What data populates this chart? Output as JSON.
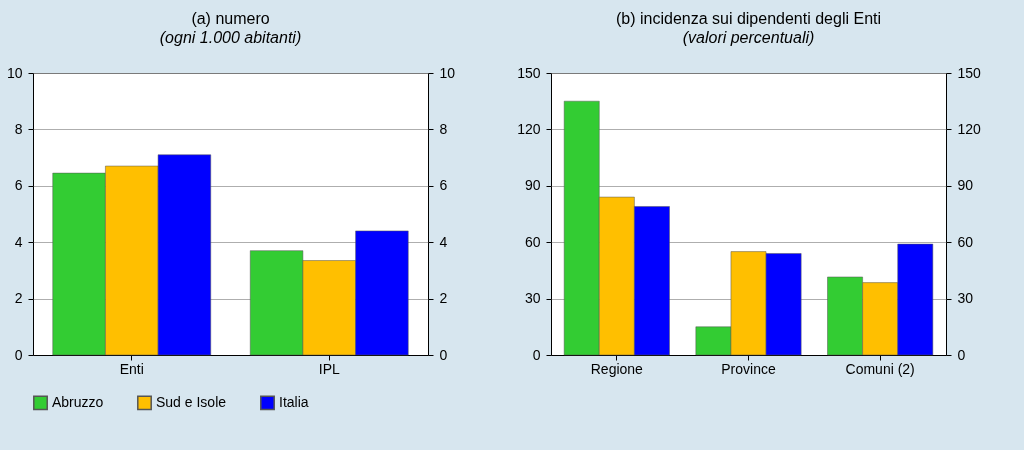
{
  "chart_data": [
    {
      "type": "bar",
      "title": "(a) numero",
      "subtitle": "(ogni 1.000 abitanti)",
      "categories": [
        "Enti",
        "IPL"
      ],
      "series": [
        {
          "name": "Abruzzo",
          "color": "#33cc33",
          "values": [
            6.45,
            3.7
          ]
        },
        {
          "name": "Sud e Isole",
          "color": "#ffbf00",
          "values": [
            6.7,
            3.35
          ]
        },
        {
          "name": "Italia",
          "color": "#0000ff",
          "values": [
            7.1,
            4.4
          ]
        }
      ],
      "ylim": [
        0,
        10
      ],
      "yticks": [
        0,
        2,
        4,
        6,
        8,
        10
      ],
      "y2lim": [
        0,
        10
      ],
      "y2ticks": [
        0,
        2,
        4,
        6,
        8,
        10
      ],
      "grid": "y",
      "legend": "bottom"
    },
    {
      "type": "bar",
      "title": "(b) incidenza sui dipendenti degli Enti",
      "subtitle": "(valori percentuali)",
      "categories": [
        "Regione",
        "Province",
        "Comuni (2)"
      ],
      "series": [
        {
          "name": "Abruzzo",
          "color": "#33cc33",
          "values": [
            135,
            15,
            41.5
          ]
        },
        {
          "name": "Sud e Isole",
          "color": "#ffbf00",
          "values": [
            84,
            55,
            38.5
          ]
        },
        {
          "name": "Italia",
          "color": "#0000ff",
          "values": [
            79,
            54,
            59
          ]
        }
      ],
      "ylim": [
        0,
        150
      ],
      "yticks": [
        0,
        30,
        60,
        90,
        120,
        150
      ],
      "y2lim": [
        0,
        150
      ],
      "y2ticks": [
        0,
        30,
        60,
        90,
        120,
        150
      ],
      "grid": "y",
      "legend": "bottom"
    }
  ]
}
